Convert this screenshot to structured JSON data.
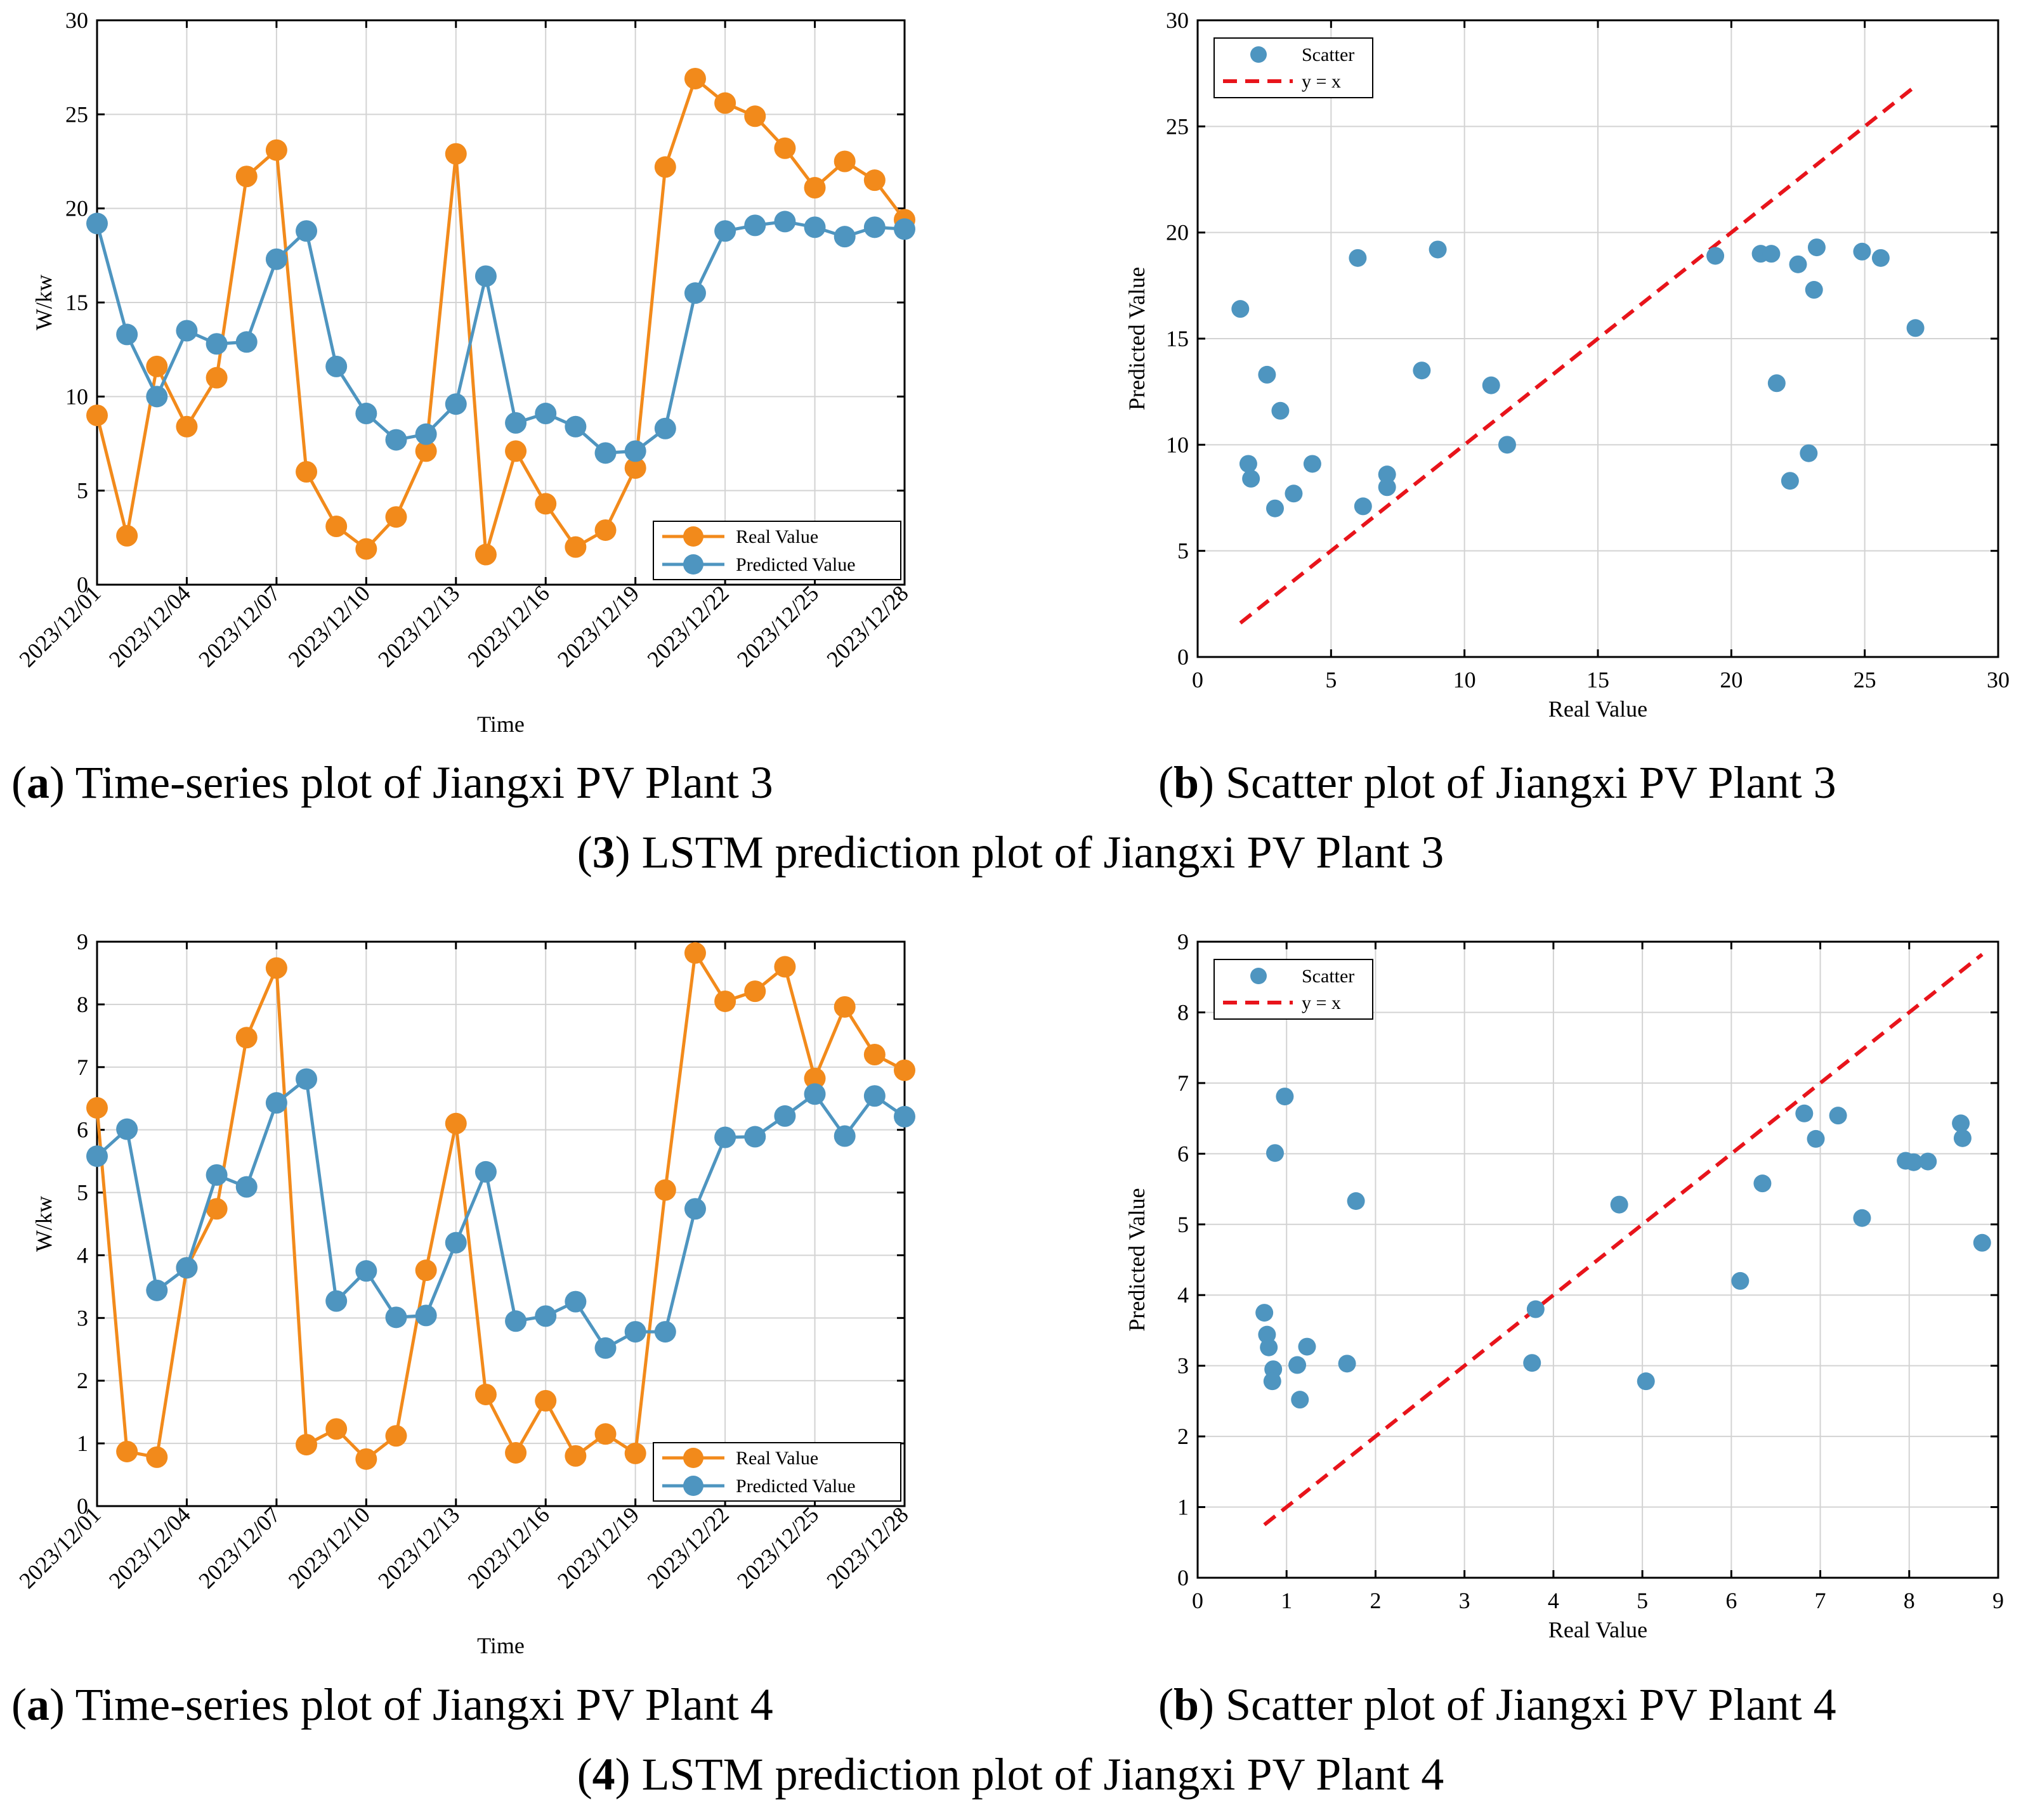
{
  "figure": {
    "groups": [
      {
        "sub_a_letter": "a",
        "sub_a_text": ") Time-series plot of Jiangxi PV Plant 3",
        "sub_b_letter": "b",
        "sub_b_text": ") Scatter plot of Jiangxi PV Plant 3",
        "group_number": "3",
        "group_text": ") LSTM prediction plot of Jiangxi PV Plant 3"
      },
      {
        "sub_a_letter": "a",
        "sub_a_text": ") Time-series plot of Jiangxi PV Plant 4",
        "sub_b_letter": "b",
        "sub_b_text": ") Scatter plot of Jiangxi PV Plant 4",
        "group_number": "4",
        "group_text": ") LSTM prediction plot of Jiangxi PV Plant 4"
      }
    ]
  },
  "colors": {
    "real": "#f28a1b",
    "predicted": "#4e95c0",
    "scatter": "#4e95c0",
    "identity": "#e8141b",
    "grid": "#d3d3d3"
  },
  "chart_data": [
    {
      "id": "ts3",
      "type": "line",
      "title": "",
      "xlabel": "Time",
      "ylabel": "W/kw",
      "ylim": [
        0,
        30
      ],
      "yticks": [
        0,
        5,
        10,
        15,
        20,
        25,
        30
      ],
      "x": [
        "2023/12/01",
        "2023/12/02",
        "2023/12/03",
        "2023/12/04",
        "2023/12/05",
        "2023/12/06",
        "2023/12/07",
        "2023/12/08",
        "2023/12/09",
        "2023/12/10",
        "2023/12/11",
        "2023/12/12",
        "2023/12/13",
        "2023/12/14",
        "2023/12/15",
        "2023/12/16",
        "2023/12/17",
        "2023/12/18",
        "2023/12/19",
        "2023/12/20",
        "2023/12/21",
        "2023/12/22",
        "2023/12/23",
        "2023/12/24",
        "2023/12/25",
        "2023/12/26",
        "2023/12/27",
        "2023/12/28"
      ],
      "xticklabels": [
        "2023/12/01",
        "2023/12/04",
        "2023/12/07",
        "2023/12/10",
        "2023/12/13",
        "2023/12/16",
        "2023/12/19",
        "2023/12/22",
        "2023/12/25",
        "2023/12/28"
      ],
      "grid": true,
      "legend_position": "bottom-right",
      "series": [
        {
          "name": "Real Value",
          "values": [
            9.0,
            2.6,
            11.6,
            8.4,
            11.0,
            21.7,
            23.1,
            6.0,
            3.1,
            1.9,
            3.6,
            7.1,
            22.9,
            1.6,
            7.1,
            4.3,
            2.0,
            2.9,
            6.2,
            22.2,
            26.9,
            25.6,
            24.9,
            23.2,
            21.1,
            22.5,
            21.5,
            19.4
          ]
        },
        {
          "name": "Predicted Value",
          "values": [
            19.2,
            13.3,
            10.0,
            13.5,
            12.8,
            12.9,
            17.3,
            18.8,
            11.6,
            9.1,
            7.7,
            8.0,
            9.6,
            16.4,
            8.6,
            9.1,
            8.4,
            7.0,
            7.1,
            8.3,
            15.5,
            18.8,
            19.1,
            19.3,
            19.0,
            18.5,
            19.0,
            18.9
          ]
        }
      ]
    },
    {
      "id": "sc3",
      "type": "scatter",
      "title": "",
      "xlabel": "Real Value",
      "ylabel": "Predicted Value",
      "xlim": [
        0,
        30
      ],
      "ylim": [
        0,
        30
      ],
      "xticks": [
        0,
        5,
        10,
        15,
        20,
        25,
        30
      ],
      "yticks": [
        0,
        5,
        10,
        15,
        20,
        25,
        30
      ],
      "grid": true,
      "legend_position": "top-left",
      "series": [
        {
          "name": "Scatter",
          "x": [
            9.0,
            2.6,
            11.6,
            8.4,
            11.0,
            21.7,
            23.1,
            6.0,
            3.1,
            1.9,
            3.6,
            7.1,
            22.9,
            1.6,
            7.1,
            4.3,
            2.0,
            2.9,
            6.2,
            22.2,
            26.9,
            25.6,
            24.9,
            23.2,
            21.1,
            22.5,
            21.5,
            19.4
          ],
          "y": [
            19.2,
            13.3,
            10.0,
            13.5,
            12.8,
            12.9,
            17.3,
            18.8,
            11.6,
            9.1,
            7.7,
            8.0,
            9.6,
            16.4,
            8.6,
            9.1,
            8.4,
            7.0,
            7.1,
            8.3,
            15.5,
            18.8,
            19.1,
            19.3,
            19.0,
            18.5,
            19.0,
            18.9
          ]
        },
        {
          "name": "y = x",
          "x": [
            1.6,
            26.9
          ],
          "y": [
            1.6,
            26.9
          ]
        }
      ]
    },
    {
      "id": "ts4",
      "type": "line",
      "title": "",
      "xlabel": "Time",
      "ylabel": "W/kw",
      "ylim": [
        0,
        9
      ],
      "yticks": [
        0,
        1,
        2,
        3,
        4,
        5,
        6,
        7,
        8,
        9
      ],
      "x": [
        "2023/12/01",
        "2023/12/02",
        "2023/12/03",
        "2023/12/04",
        "2023/12/05",
        "2023/12/06",
        "2023/12/07",
        "2023/12/08",
        "2023/12/09",
        "2023/12/10",
        "2023/12/11",
        "2023/12/12",
        "2023/12/13",
        "2023/12/14",
        "2023/12/15",
        "2023/12/16",
        "2023/12/17",
        "2023/12/18",
        "2023/12/19",
        "2023/12/20",
        "2023/12/21",
        "2023/12/22",
        "2023/12/23",
        "2023/12/24",
        "2023/12/25",
        "2023/12/26",
        "2023/12/27",
        "2023/12/28"
      ],
      "xticklabels": [
        "2023/12/01",
        "2023/12/04",
        "2023/12/07",
        "2023/12/10",
        "2023/12/13",
        "2023/12/16",
        "2023/12/19",
        "2023/12/22",
        "2023/12/25",
        "2023/12/28"
      ],
      "grid": true,
      "legend_position": "bottom-right",
      "series": [
        {
          "name": "Real Value",
          "values": [
            6.35,
            0.87,
            0.78,
            3.8,
            4.74,
            7.47,
            8.58,
            0.98,
            1.23,
            0.75,
            1.12,
            3.76,
            6.1,
            1.78,
            0.85,
            1.68,
            0.8,
            1.15,
            0.84,
            5.04,
            8.82,
            8.05,
            8.21,
            8.6,
            6.82,
            7.96,
            7.2,
            6.95
          ]
        },
        {
          "name": "Predicted Value",
          "values": [
            5.58,
            6.01,
            3.44,
            3.8,
            5.28,
            5.09,
            6.43,
            6.81,
            3.27,
            3.75,
            3.01,
            3.04,
            4.2,
            5.33,
            2.95,
            3.03,
            3.26,
            2.52,
            2.78,
            2.78,
            4.74,
            5.88,
            5.89,
            6.22,
            6.57,
            5.9,
            6.54,
            6.21
          ]
        }
      ]
    },
    {
      "id": "sc4",
      "type": "scatter",
      "title": "",
      "xlabel": "Real Value",
      "ylabel": "Predicted Value",
      "xlim": [
        0,
        9
      ],
      "ylim": [
        0,
        9
      ],
      "xticks": [
        0,
        1,
        2,
        3,
        4,
        5,
        6,
        7,
        8,
        9
      ],
      "yticks": [
        0,
        1,
        2,
        3,
        4,
        5,
        6,
        7,
        8,
        9
      ],
      "grid": true,
      "legend_position": "top-left",
      "series": [
        {
          "name": "Scatter",
          "x": [
            6.35,
            0.87,
            0.78,
            3.8,
            4.74,
            7.47,
            8.58,
            0.98,
            1.23,
            0.75,
            1.12,
            3.76,
            6.1,
            1.78,
            0.85,
            1.68,
            0.8,
            1.15,
            0.84,
            5.04,
            8.82,
            8.05,
            8.21,
            8.6,
            6.82,
            7.96,
            7.2,
            6.95
          ],
          "y": [
            5.58,
            6.01,
            3.44,
            3.8,
            5.28,
            5.09,
            6.43,
            6.81,
            3.27,
            3.75,
            3.01,
            3.04,
            4.2,
            5.33,
            2.95,
            3.03,
            3.26,
            2.52,
            2.78,
            2.78,
            4.74,
            5.88,
            5.89,
            6.22,
            6.57,
            5.9,
            6.54,
            6.21
          ]
        },
        {
          "name": "y = x",
          "x": [
            0.75,
            8.82
          ],
          "y": [
            0.75,
            8.82
          ]
        }
      ]
    }
  ]
}
